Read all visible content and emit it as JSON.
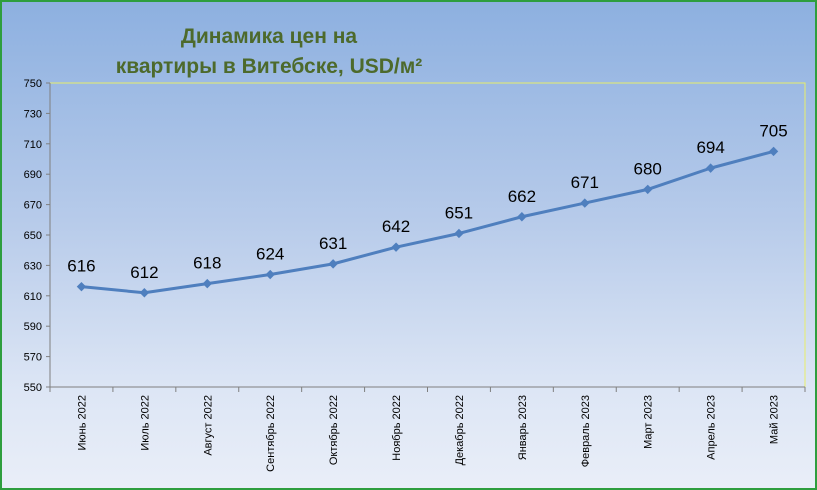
{
  "chart_data": {
    "type": "line",
    "title_lines": [
      "Динамика цен на",
      "квартиры в Витебске, USD/м²"
    ],
    "categories": [
      "Июнь 2022",
      "Июль 2022",
      "Август 2022",
      "Сентябрь 2022",
      "Октябрь 2022",
      "Ноябрь 2022",
      "Декабрь 2022",
      "Январь 2023",
      "Февраль 2023",
      "Март 2023",
      "Апрель 2023",
      "Май 2023"
    ],
    "values": [
      616,
      612,
      618,
      624,
      631,
      642,
      651,
      662,
      671,
      680,
      694,
      705
    ],
    "ylim": [
      550,
      750
    ],
    "yticks": [
      550,
      570,
      590,
      610,
      630,
      650,
      670,
      690,
      710,
      730,
      750
    ],
    "grid": false,
    "legend": "none",
    "colors": {
      "line": "#4f7fbe",
      "plot_border": "#e8ee6a",
      "title": "#4d6a2c",
      "frame": "#2e9e3e"
    }
  }
}
